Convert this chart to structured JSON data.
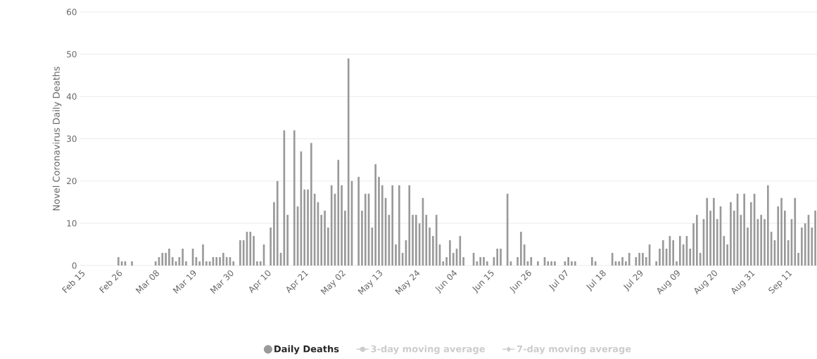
{
  "chart_data": {
    "type": "bar",
    "ylabel": "Novel Coronavirus Daily Deaths",
    "categories": [
      "Feb 15",
      null,
      null,
      null,
      null,
      null,
      null,
      null,
      null,
      null,
      null,
      "Feb 26",
      null,
      null,
      null,
      null,
      null,
      null,
      null,
      null,
      null,
      null,
      "Mar 08",
      null,
      null,
      null,
      null,
      null,
      null,
      null,
      null,
      null,
      null,
      "Mar 19",
      null,
      null,
      null,
      null,
      null,
      null,
      null,
      null,
      null,
      null,
      "Mar 30",
      null,
      null,
      null,
      null,
      null,
      null,
      null,
      null,
      null,
      null,
      "Apr 10",
      null,
      null,
      null,
      null,
      null,
      null,
      null,
      null,
      null,
      null,
      "Apr 21",
      null,
      null,
      null,
      null,
      null,
      null,
      null,
      null,
      null,
      null,
      "May 02",
      null,
      null,
      null,
      null,
      null,
      null,
      null,
      null,
      null,
      null,
      "May 13",
      null,
      null,
      null,
      null,
      null,
      null,
      null,
      null,
      null,
      null,
      "May 24",
      null,
      null,
      null,
      null,
      null,
      null,
      null,
      null,
      null,
      null,
      "Jun 04",
      null,
      null,
      null,
      null,
      null,
      null,
      null,
      null,
      null,
      null,
      "Jun 15",
      null,
      null,
      null,
      null,
      null,
      null,
      null,
      null,
      null,
      null,
      "Jun 26",
      null,
      null,
      null,
      null,
      null,
      null,
      null,
      null,
      null,
      null,
      "Jul 07",
      null,
      null,
      null,
      null,
      null,
      null,
      null,
      null,
      null,
      null,
      "Jul 18",
      null,
      null,
      null,
      null,
      null,
      null,
      null,
      null,
      null,
      null,
      "Jul 29",
      null,
      null,
      null,
      null,
      null,
      null,
      null,
      null,
      null,
      null,
      "Aug 09",
      null,
      null,
      null,
      null,
      null,
      null,
      null,
      null,
      null,
      null,
      "Aug 20",
      null,
      null,
      null,
      null,
      null,
      null,
      null,
      null,
      null,
      null,
      "Aug 31",
      null,
      null,
      null,
      null,
      null,
      null,
      null,
      null,
      null,
      null,
      "Sep 11",
      null,
      null,
      null,
      null,
      null,
      null,
      null,
      null
    ],
    "series": [
      {
        "name": "Daily Deaths",
        "color": "#999999",
        "marker": "circle",
        "values": [
          0,
          0,
          0,
          0,
          0,
          0,
          0,
          0,
          0,
          0,
          0,
          2,
          1,
          1,
          0,
          1,
          0,
          0,
          0,
          0,
          0,
          0,
          1,
          2,
          3,
          3,
          4,
          2,
          1,
          2,
          4,
          1,
          0,
          4,
          2,
          1,
          5,
          1,
          1,
          2,
          2,
          2,
          3,
          2,
          2,
          1,
          0,
          6,
          6,
          8,
          8,
          7,
          1,
          1,
          5,
          0,
          9,
          15,
          20,
          3,
          32,
          12,
          0,
          32,
          14,
          27,
          18,
          18,
          29,
          17,
          15,
          12,
          13,
          9,
          19,
          17,
          25,
          19,
          13,
          49,
          20,
          0,
          21,
          13,
          17,
          17,
          9,
          24,
          21,
          19,
          16,
          12,
          19,
          5,
          19,
          3,
          6,
          19,
          12,
          12,
          10,
          16,
          12,
          9,
          7,
          12,
          5,
          1,
          2,
          6,
          3,
          4,
          7,
          2,
          0,
          0,
          3,
          1,
          2,
          2,
          1,
          0,
          2,
          4,
          4,
          0,
          17,
          1,
          0,
          2,
          8,
          5,
          1,
          2,
          0,
          1,
          0,
          2,
          1,
          1,
          1,
          0,
          0,
          1,
          2,
          1,
          1,
          0,
          0,
          0,
          0,
          2,
          1,
          0,
          0,
          0,
          0,
          3,
          1,
          1,
          2,
          1,
          3,
          0,
          2,
          3,
          3,
          2,
          5,
          0,
          1,
          4,
          6,
          4,
          7,
          6,
          1,
          7,
          5,
          7,
          4,
          10,
          12,
          3,
          11,
          16,
          13,
          16,
          11,
          14,
          7,
          5,
          15,
          13,
          17,
          12,
          17,
          9,
          15,
          17,
          11,
          12,
          11,
          19,
          8,
          6,
          14,
          16,
          13,
          6,
          11,
          16,
          3,
          9,
          10,
          12,
          9,
          13
        ]
      },
      {
        "name": "3-day moving average",
        "type": "line",
        "color": "#cccccc",
        "marker": "circle",
        "values": [
          null,
          null,
          null,
          null,
          null,
          null,
          null,
          null,
          null,
          null,
          null,
          null,
          null,
          null,
          null,
          null,
          null,
          null,
          null,
          null,
          null,
          null,
          null,
          null,
          null,
          null,
          null,
          null,
          null,
          null,
          null,
          null,
          null,
          null,
          null,
          null,
          null,
          null,
          null,
          null,
          null,
          null,
          null,
          null,
          null,
          null,
          null,
          null,
          null,
          null,
          null,
          null,
          null,
          null,
          null,
          null,
          null,
          null,
          null,
          null,
          null,
          null,
          null,
          null,
          null,
          null,
          null,
          null,
          null,
          null,
          null,
          null,
          null,
          null,
          null,
          null,
          null,
          null,
          null,
          null,
          null,
          null,
          null,
          null,
          null,
          null,
          null,
          null,
          null,
          null,
          null,
          null,
          null,
          null,
          null,
          null,
          null,
          null,
          null,
          null,
          null,
          null,
          null,
          null,
          null,
          null,
          null,
          null,
          null,
          null,
          null,
          null,
          null,
          null,
          null,
          null,
          null,
          null,
          null,
          null,
          null,
          null,
          null,
          null,
          null,
          null,
          null,
          null,
          null,
          null,
          null,
          null,
          null,
          null,
          null,
          null,
          null,
          null,
          null,
          null,
          null,
          null,
          null,
          null,
          null,
          null,
          null,
          null,
          null,
          null,
          null,
          null,
          null,
          null,
          null,
          null,
          null,
          null,
          null,
          null,
          null,
          null,
          null,
          null,
          null,
          null,
          null,
          null,
          null,
          null,
          null,
          null,
          null,
          null,
          null,
          null,
          null,
          null,
          null,
          null,
          null,
          null,
          null,
          null,
          null,
          null,
          null,
          null,
          null,
          null,
          null,
          null,
          null,
          null,
          null,
          null,
          null,
          null,
          null,
          null,
          null,
          null,
          null,
          null,
          null,
          null,
          null,
          null,
          null,
          null,
          null,
          null,
          null,
          null,
          null,
          null,
          null,
          null
        ]
      },
      {
        "name": "7-day moving average",
        "type": "line",
        "color": "#cccccc",
        "marker": "diamond",
        "values": [
          null,
          null,
          null,
          null,
          null,
          null,
          null,
          null,
          null,
          null,
          null,
          null,
          null,
          null,
          null,
          null,
          null,
          null,
          null,
          null,
          null,
          null,
          null,
          null,
          null,
          null,
          null,
          null,
          null,
          null,
          null,
          null,
          null,
          null,
          null,
          null,
          null,
          null,
          null,
          null,
          null,
          null,
          null,
          null,
          null,
          null,
          null,
          null,
          null,
          null,
          null,
          null,
          null,
          null,
          null,
          null,
          null,
          null,
          null,
          null,
          null,
          null,
          null,
          null,
          null,
          null,
          null,
          null,
          null,
          null,
          null,
          null,
          null,
          null,
          null,
          null,
          null,
          null,
          null,
          null,
          null,
          null,
          null,
          null,
          null,
          null,
          null,
          null,
          null,
          null,
          null,
          null,
          null,
          null,
          null,
          null,
          null,
          null,
          null,
          null,
          null,
          null,
          null,
          null,
          null,
          null,
          null,
          null,
          null,
          null,
          null,
          null,
          null,
          null,
          null,
          null,
          null,
          null,
          null,
          null,
          null,
          null,
          null,
          null,
          null,
          null,
          null,
          null,
          null,
          null,
          null,
          null,
          null,
          null,
          null,
          null,
          null,
          null,
          null,
          null,
          null,
          null,
          null,
          null,
          null,
          null,
          null,
          null,
          null,
          null,
          null,
          null,
          null,
          null,
          null,
          null,
          null,
          null,
          null,
          null,
          null,
          null,
          null,
          null,
          null,
          null,
          null,
          null,
          null,
          null,
          null,
          null,
          null,
          null,
          null,
          null,
          null,
          null,
          null,
          null,
          null,
          null,
          null,
          null,
          null,
          null,
          null,
          null,
          null,
          null,
          null,
          null,
          null,
          null,
          null,
          null,
          null,
          null,
          null,
          null,
          null,
          null,
          null,
          null,
          null,
          null,
          null,
          null,
          null,
          null,
          null,
          null,
          null,
          null,
          null,
          null,
          null,
          null
        ]
      }
    ],
    "ylim": [
      0,
      60
    ],
    "yticks": [
      0,
      10,
      20,
      30,
      40,
      50,
      60
    ],
    "grid": "y",
    "legend": "bottom"
  }
}
